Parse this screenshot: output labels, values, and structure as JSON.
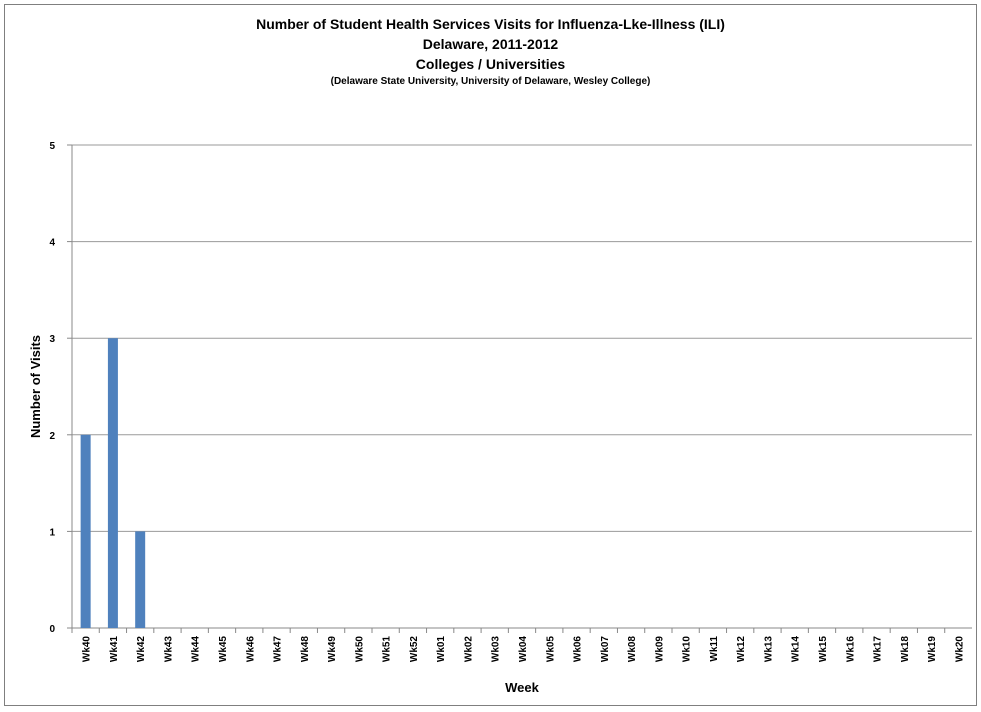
{
  "chart_data": {
    "type": "bar",
    "title": "Number of Student Health Services Visits for Influenza-Lke-Illness (ILI)",
    "subtitle_lines": [
      "Delaware, 2011-2012",
      "Colleges / Universities",
      "(Delaware State University, University of Delaware, Wesley College)"
    ],
    "xlabel": "Week",
    "ylabel": "Number of Visits",
    "ylim": [
      0,
      5
    ],
    "yticks": [
      0,
      1,
      2,
      3,
      4,
      5
    ],
    "grid": true,
    "bar_color": "#4f81bd",
    "categories": [
      "Wk40",
      "Wk41",
      "Wk42",
      "Wk43",
      "Wk44",
      "Wk45",
      "Wk46",
      "Wk47",
      "Wk48",
      "Wk49",
      "Wk50",
      "Wk51",
      "Wk52",
      "Wk01",
      "Wk02",
      "Wk03",
      "Wk04",
      "Wk05",
      "Wk06",
      "Wk07",
      "Wk08",
      "Wk09",
      "Wk10",
      "Wk11",
      "Wk12",
      "Wk13",
      "Wk14",
      "Wk15",
      "Wk16",
      "Wk17",
      "Wk18",
      "Wk19",
      "Wk20"
    ],
    "values": [
      2,
      3,
      1,
      0,
      0,
      0,
      0,
      0,
      0,
      0,
      0,
      0,
      0,
      0,
      0,
      0,
      0,
      0,
      0,
      0,
      0,
      0,
      0,
      0,
      0,
      0,
      0,
      0,
      0,
      0,
      0,
      0,
      0
    ]
  }
}
